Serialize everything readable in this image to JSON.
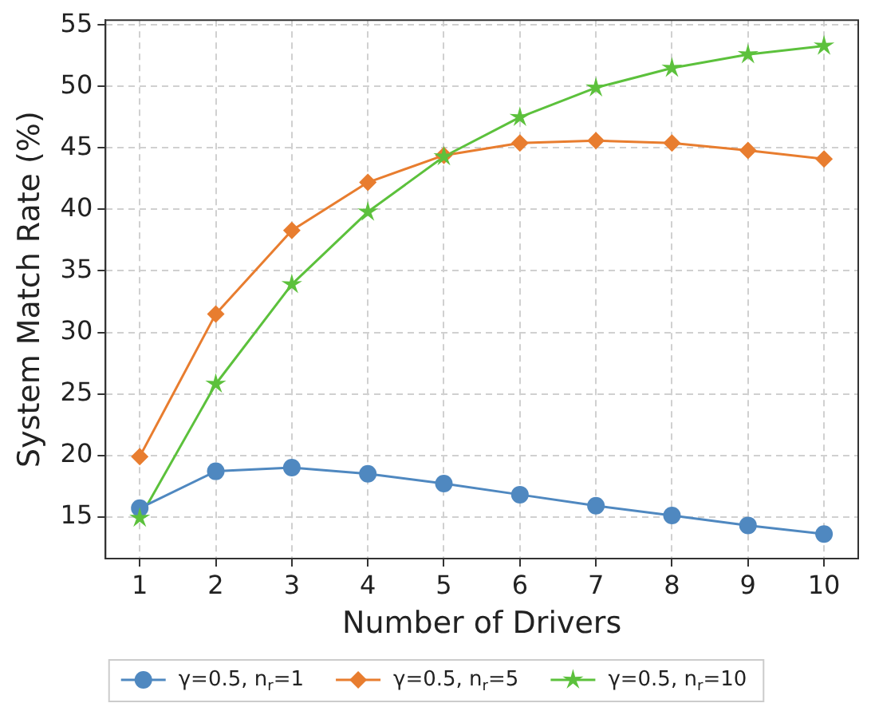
{
  "chart_data": {
    "type": "line",
    "xlabel": "Number of Drivers",
    "ylabel": "System Match Rate (%)",
    "x": [
      1,
      2,
      3,
      4,
      5,
      6,
      7,
      8,
      9,
      10
    ],
    "series": [
      {
        "name": "γ=0.5, n$_{r}$=1",
        "color": "#4f88c0",
        "marker": "circle",
        "values": [
          15.7,
          18.7,
          19.0,
          18.5,
          17.7,
          16.8,
          15.9,
          15.1,
          14.3,
          13.6
        ]
      },
      {
        "name": "γ=0.5, n$_{r}$=5",
        "color": "#e87d2f",
        "marker": "diamond",
        "values": [
          19.9,
          31.5,
          38.3,
          42.2,
          44.4,
          45.4,
          45.6,
          45.4,
          44.8,
          44.1
        ]
      },
      {
        "name": "γ=0.5, n$_{r}$=10",
        "color": "#5cc13c",
        "marker": "star",
        "values": [
          14.9,
          25.8,
          33.9,
          39.8,
          44.3,
          47.5,
          49.9,
          51.5,
          52.6,
          53.3
        ]
      }
    ],
    "xlim": [
      0.55,
      10.45
    ],
    "xticks": [
      1,
      2,
      3,
      4,
      5,
      6,
      7,
      8,
      9,
      10
    ],
    "ylim": [
      11.6,
      55.4
    ],
    "yticks": [
      15,
      20,
      25,
      30,
      35,
      40,
      45,
      50,
      55
    ],
    "grid": true,
    "legend": "bottom",
    "line_style": "solid"
  }
}
